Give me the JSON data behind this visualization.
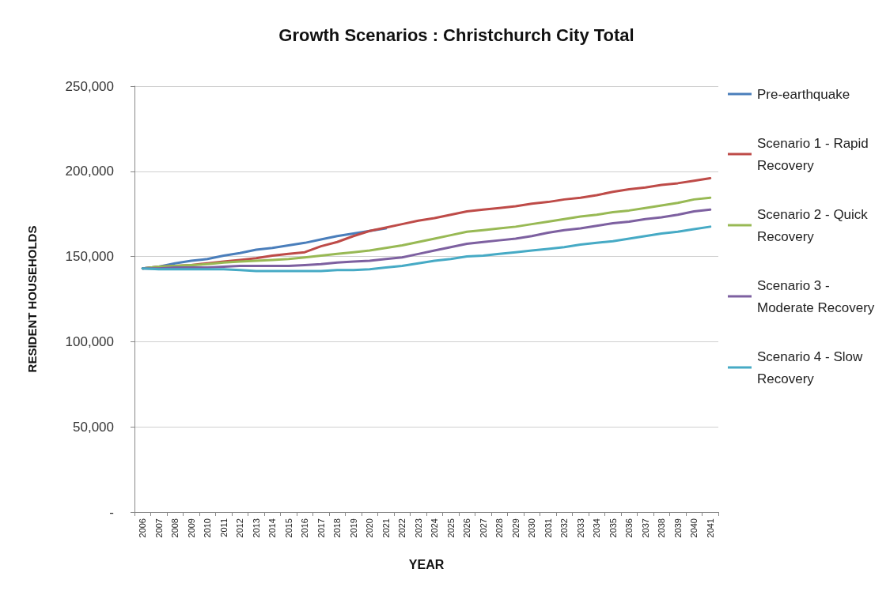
{
  "chart_data": {
    "type": "line",
    "title": "Growth Scenarios : Christchurch City Total",
    "xlabel": "YEAR",
    "ylabel": "RESIDENT HOUSEHOLDS",
    "categories": [
      "2006",
      "2007",
      "2008",
      "2009",
      "2010",
      "2011",
      "2012",
      "2013",
      "2014",
      "2015",
      "2016",
      "2017",
      "2018",
      "2019",
      "2020",
      "2021",
      "2022",
      "2023",
      "2024",
      "2025",
      "2026",
      "2027",
      "2028",
      "2029",
      "2030",
      "2031",
      "2032",
      "2033",
      "2034",
      "2035",
      "2036",
      "2037",
      "2038",
      "2039",
      "2040",
      "2041"
    ],
    "series": [
      {
        "name": "Pre-earthquake",
        "color": "#4a7ebb",
        "values": [
          143000,
          144000,
          146000,
          147500,
          148500,
          150500,
          152000,
          154000,
          155000,
          156500,
          158000,
          160000,
          162000,
          163500,
          165000,
          166500,
          null,
          null,
          null,
          null,
          null,
          null,
          null,
          null,
          null,
          null,
          null,
          null,
          null,
          null,
          null,
          null,
          null,
          null,
          null,
          null
        ]
      },
      {
        "name": "Scenario 1 - Rapid Recovery",
        "color": "#be4b48",
        "values": [
          143000,
          144000,
          144500,
          145000,
          146000,
          147000,
          148000,
          149000,
          150500,
          151500,
          152500,
          156000,
          158500,
          162000,
          165000,
          167000,
          169000,
          171000,
          172500,
          174500,
          176500,
          177500,
          178500,
          179500,
          181000,
          182000,
          183500,
          184500,
          186000,
          188000,
          189500,
          190500,
          192000,
          193000,
          194500,
          196000
        ]
      },
      {
        "name": "Scenario 2 - Quick Recovery",
        "color": "#98b954",
        "values": [
          143000,
          144000,
          144500,
          145000,
          145500,
          146500,
          147000,
          147500,
          148000,
          148500,
          149500,
          150500,
          151500,
          152500,
          153500,
          155000,
          156500,
          158500,
          160500,
          162500,
          164500,
          165500,
          166500,
          167500,
          169000,
          170500,
          172000,
          173500,
          174500,
          176000,
          177000,
          178500,
          180000,
          181500,
          183500,
          184500
        ]
      },
      {
        "name": "Scenario 3 - Moderate Recovery",
        "color": "#7d60a0",
        "values": [
          143000,
          143000,
          143500,
          143500,
          143500,
          144000,
          144500,
          144500,
          144500,
          144500,
          145000,
          145500,
          146500,
          147000,
          147500,
          148500,
          149500,
          151500,
          153500,
          155500,
          157500,
          158500,
          159500,
          160500,
          162000,
          164000,
          165500,
          166500,
          168000,
          169500,
          170500,
          172000,
          173000,
          174500,
          176500,
          177500
        ]
      },
      {
        "name": "Scenario 4 - Slow Recovery",
        "color": "#46aac5",
        "values": [
          143000,
          142500,
          142500,
          142500,
          142500,
          142500,
          142000,
          141500,
          141500,
          141500,
          141500,
          141500,
          142000,
          142000,
          142500,
          143500,
          144500,
          146000,
          147500,
          148500,
          150000,
          150500,
          151500,
          152500,
          153500,
          154500,
          155500,
          157000,
          158000,
          159000,
          160500,
          162000,
          163500,
          164500,
          166000,
          167500
        ]
      }
    ],
    "ylim": [
      0,
      250000
    ],
    "yticks": [
      {
        "value": 0,
        "label": "-"
      },
      {
        "value": 50000,
        "label": "50,000"
      },
      {
        "value": 100000,
        "label": "100,000"
      },
      {
        "value": 150000,
        "label": "150,000"
      },
      {
        "value": 200000,
        "label": "200,000"
      },
      {
        "value": 250000,
        "label": "250,000"
      }
    ],
    "grid": "y",
    "legend": "right",
    "marker": "none",
    "line_style": "solid"
  }
}
